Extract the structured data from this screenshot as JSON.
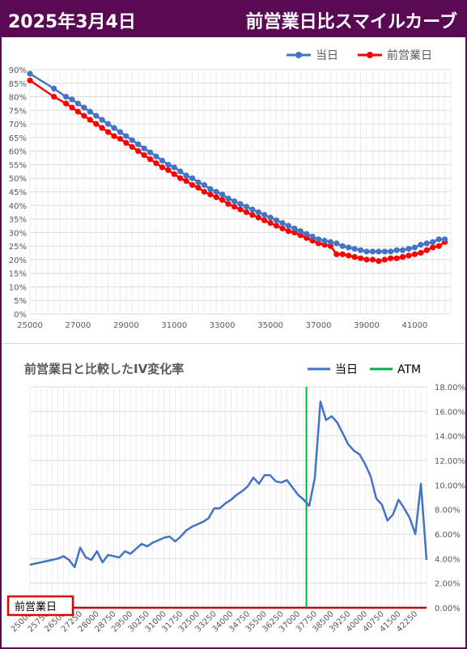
{
  "header": {
    "date": "2025年3月4日",
    "title": "前営業日比スマイルカーブ"
  },
  "colors": {
    "header_bg": "#5a0a55",
    "today": "#4472c4",
    "prev": "#ff0000",
    "atm": "#00b050",
    "base": "#c00000"
  },
  "chart_data": [
    {
      "type": "line",
      "title": "",
      "legend": {
        "position": "top-right",
        "entries": [
          "当日",
          "前営業日"
        ]
      },
      "xlim": [
        25000,
        42500
      ],
      "ylim": [
        0,
        0.9
      ],
      "x_ticks": [
        "25000",
        "27000",
        "29000",
        "31000",
        "33000",
        "35000",
        "37000",
        "39000",
        "41000"
      ],
      "y_ticks": [
        "0%",
        "5%",
        "10%",
        "15%",
        "20%",
        "25%",
        "30%",
        "35%",
        "40%",
        "45%",
        "50%",
        "55%",
        "60%",
        "65%",
        "70%",
        "75%",
        "80%",
        "85%",
        "90%"
      ],
      "grid": true,
      "series": [
        {
          "name": "当日",
          "points": [
            [
              25000,
              0.885
            ],
            [
              26000,
              0.83
            ],
            [
              26500,
              0.8
            ],
            [
              26750,
              0.79
            ],
            [
              27000,
              0.775
            ],
            [
              27250,
              0.76
            ],
            [
              27500,
              0.745
            ],
            [
              27750,
              0.73
            ],
            [
              28000,
              0.715
            ],
            [
              28250,
              0.7
            ],
            [
              28500,
              0.685
            ],
            [
              28750,
              0.67
            ],
            [
              29000,
              0.655
            ],
            [
              29250,
              0.64
            ],
            [
              29500,
              0.625
            ],
            [
              29750,
              0.61
            ],
            [
              30000,
              0.595
            ],
            [
              30250,
              0.58
            ],
            [
              30500,
              0.565
            ],
            [
              30750,
              0.55
            ],
            [
              31000,
              0.54
            ],
            [
              31250,
              0.525
            ],
            [
              31500,
              0.51
            ],
            [
              31750,
              0.5
            ],
            [
              32000,
              0.485
            ],
            [
              32250,
              0.475
            ],
            [
              32500,
              0.46
            ],
            [
              32750,
              0.45
            ],
            [
              33000,
              0.44
            ],
            [
              33250,
              0.425
            ],
            [
              33500,
              0.415
            ],
            [
              33750,
              0.405
            ],
            [
              34000,
              0.395
            ],
            [
              34250,
              0.385
            ],
            [
              34500,
              0.375
            ],
            [
              34750,
              0.365
            ],
            [
              35000,
              0.355
            ],
            [
              35250,
              0.345
            ],
            [
              35500,
              0.335
            ],
            [
              35750,
              0.325
            ],
            [
              36000,
              0.315
            ],
            [
              36250,
              0.305
            ],
            [
              36500,
              0.295
            ],
            [
              36750,
              0.285
            ],
            [
              37000,
              0.275
            ],
            [
              37250,
              0.27
            ],
            [
              37500,
              0.265
            ],
            [
              37750,
              0.26
            ],
            [
              38000,
              0.25
            ],
            [
              38250,
              0.245
            ],
            [
              38500,
              0.24
            ],
            [
              38750,
              0.235
            ],
            [
              39000,
              0.23
            ],
            [
              39250,
              0.23
            ],
            [
              39500,
              0.23
            ],
            [
              39750,
              0.23
            ],
            [
              40000,
              0.23
            ],
            [
              40250,
              0.235
            ],
            [
              40500,
              0.235
            ],
            [
              40750,
              0.24
            ],
            [
              41000,
              0.245
            ],
            [
              41250,
              0.255
            ],
            [
              41500,
              0.26
            ],
            [
              41750,
              0.265
            ],
            [
              42000,
              0.275
            ],
            [
              42250,
              0.275
            ]
          ]
        },
        {
          "name": "前営業日",
          "points": [
            [
              25000,
              0.86
            ],
            [
              26000,
              0.8
            ],
            [
              26500,
              0.775
            ],
            [
              26750,
              0.76
            ],
            [
              27000,
              0.745
            ],
            [
              27250,
              0.73
            ],
            [
              27500,
              0.715
            ],
            [
              27750,
              0.7
            ],
            [
              28000,
              0.685
            ],
            [
              28250,
              0.67
            ],
            [
              28500,
              0.655
            ],
            [
              28750,
              0.645
            ],
            [
              29000,
              0.63
            ],
            [
              29250,
              0.615
            ],
            [
              29500,
              0.6
            ],
            [
              29750,
              0.585
            ],
            [
              30000,
              0.57
            ],
            [
              30250,
              0.555
            ],
            [
              30500,
              0.54
            ],
            [
              30750,
              0.53
            ],
            [
              31000,
              0.515
            ],
            [
              31250,
              0.5
            ],
            [
              31500,
              0.49
            ],
            [
              31750,
              0.475
            ],
            [
              32000,
              0.465
            ],
            [
              32250,
              0.45
            ],
            [
              32500,
              0.44
            ],
            [
              32750,
              0.43
            ],
            [
              33000,
              0.42
            ],
            [
              33250,
              0.405
            ],
            [
              33500,
              0.395
            ],
            [
              33750,
              0.385
            ],
            [
              34000,
              0.375
            ],
            [
              34250,
              0.365
            ],
            [
              34500,
              0.355
            ],
            [
              34750,
              0.345
            ],
            [
              35000,
              0.335
            ],
            [
              35250,
              0.325
            ],
            [
              35500,
              0.315
            ],
            [
              35750,
              0.305
            ],
            [
              36000,
              0.3
            ],
            [
              36250,
              0.29
            ],
            [
              36500,
              0.28
            ],
            [
              36750,
              0.27
            ],
            [
              37000,
              0.26
            ],
            [
              37250,
              0.255
            ],
            [
              37500,
              0.25
            ],
            [
              37750,
              0.22
            ],
            [
              38000,
              0.22
            ],
            [
              38250,
              0.215
            ],
            [
              38500,
              0.21
            ],
            [
              38750,
              0.205
            ],
            [
              39000,
              0.2
            ],
            [
              39250,
              0.2
            ],
            [
              39500,
              0.195
            ],
            [
              39750,
              0.2
            ],
            [
              40000,
              0.205
            ],
            [
              40250,
              0.205
            ],
            [
              40500,
              0.21
            ],
            [
              40750,
              0.215
            ],
            [
              41000,
              0.22
            ],
            [
              41250,
              0.225
            ],
            [
              41500,
              0.235
            ],
            [
              41750,
              0.245
            ],
            [
              42000,
              0.25
            ],
            [
              42250,
              0.265
            ]
          ]
        }
      ]
    },
    {
      "type": "line",
      "title": "前営業日と比較したIV変化率",
      "legend": {
        "position": "top-right",
        "entries": [
          "当日",
          "ATM"
        ]
      },
      "xlim": [
        25000,
        42250
      ],
      "ylim": [
        0,
        0.18
      ],
      "x_ticks": [
        "25000",
        "25750",
        "26500",
        "27250",
        "28000",
        "28750",
        "29500",
        "30250",
        "31000",
        "31750",
        "32500",
        "33250",
        "34000",
        "34750",
        "35500",
        "36250",
        "37000",
        "37750",
        "38500",
        "39250",
        "40000",
        "40750",
        "41500",
        "42250"
      ],
      "y_ticks": [
        "0.00%",
        "2.00%",
        "4.00%",
        "6.00%",
        "8.00%",
        "10.00%",
        "12.00%",
        "14.00%",
        "16.00%",
        "18.00%"
      ],
      "grid": true,
      "atm_x": 37375,
      "baseline_label": "前営業日",
      "series": [
        {
          "name": "当日",
          "points": [
            [
              25000,
              0.035
            ],
            [
              25250,
              0.036
            ],
            [
              25500,
              0.037
            ],
            [
              25750,
              0.038
            ],
            [
              26000,
              0.039
            ],
            [
              26250,
              0.04
            ],
            [
              26500,
              0.042
            ],
            [
              26750,
              0.039
            ],
            [
              27000,
              0.033
            ],
            [
              27250,
              0.049
            ],
            [
              27500,
              0.041
            ],
            [
              27750,
              0.039
            ],
            [
              28000,
              0.046
            ],
            [
              28250,
              0.037
            ],
            [
              28500,
              0.043
            ],
            [
              28750,
              0.042
            ],
            [
              29000,
              0.041
            ],
            [
              29250,
              0.046
            ],
            [
              29500,
              0.044
            ],
            [
              29750,
              0.048
            ],
            [
              30000,
              0.052
            ],
            [
              30250,
              0.05
            ],
            [
              30500,
              0.053
            ],
            [
              30750,
              0.055
            ],
            [
              31000,
              0.057
            ],
            [
              31250,
              0.058
            ],
            [
              31500,
              0.054
            ],
            [
              31750,
              0.058
            ],
            [
              32000,
              0.063
            ],
            [
              32250,
              0.066
            ],
            [
              32500,
              0.068
            ],
            [
              32750,
              0.07
            ],
            [
              33000,
              0.073
            ],
            [
              33250,
              0.081
            ],
            [
              33500,
              0.081
            ],
            [
              33750,
              0.085
            ],
            [
              34000,
              0.088
            ],
            [
              34250,
              0.092
            ],
            [
              34500,
              0.095
            ],
            [
              34750,
              0.099
            ],
            [
              35000,
              0.106
            ],
            [
              35250,
              0.101
            ],
            [
              35500,
              0.108
            ],
            [
              35750,
              0.108
            ],
            [
              36000,
              0.103
            ],
            [
              36250,
              0.102
            ],
            [
              36500,
              0.104
            ],
            [
              36750,
              0.098
            ],
            [
              37000,
              0.092
            ],
            [
              37250,
              0.088
            ],
            [
              37500,
              0.083
            ],
            [
              37750,
              0.106
            ],
            [
              38000,
              0.168
            ],
            [
              38250,
              0.153
            ],
            [
              38500,
              0.156
            ],
            [
              38750,
              0.151
            ],
            [
              39000,
              0.142
            ],
            [
              39250,
              0.133
            ],
            [
              39500,
              0.128
            ],
            [
              39750,
              0.125
            ],
            [
              40000,
              0.117
            ],
            [
              40250,
              0.107
            ],
            [
              40500,
              0.089
            ],
            [
              40750,
              0.084
            ],
            [
              41000,
              0.071
            ],
            [
              41250,
              0.076
            ],
            [
              41500,
              0.088
            ],
            [
              41750,
              0.081
            ],
            [
              42000,
              0.073
            ],
            [
              42250,
              0.06
            ],
            [
              42500,
              0.101
            ],
            [
              42750,
              0.039
            ]
          ]
        }
      ]
    }
  ]
}
